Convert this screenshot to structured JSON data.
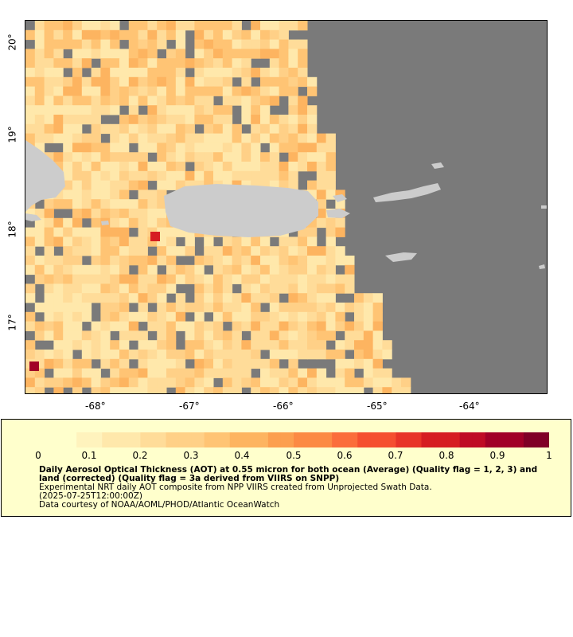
{
  "map": {
    "lon_ticks": [
      "-68°",
      "-67°",
      "-66°",
      "-65°",
      "-64°"
    ],
    "lat_ticks": [
      "20°",
      "19°",
      "18°",
      "17°"
    ],
    "colors": {
      "no_data": "#7a7a7a",
      "land": "#cccccc",
      "colorscale": [
        "#ffffcc",
        "#fff3bd",
        "#ffe8ab",
        "#ffdc99",
        "#ffd087",
        "#ffc474",
        "#fdb460",
        "#fc9f4f",
        "#fc8a44",
        "#fb6d3b",
        "#f54f30",
        "#e83428",
        "#d61d22",
        "#bf0b25",
        "#a10027",
        "#800026"
      ]
    },
    "highlight_cells": [
      "red cell near -67.3, 17.95",
      "dark red cell near -68.75, 16.6"
    ]
  },
  "colorbar": {
    "labels": [
      "0",
      "0.1",
      "0.2",
      "0.3",
      "0.4",
      "0.5",
      "0.6",
      "0.7",
      "0.8",
      "0.9",
      "1"
    ],
    "range": [
      0,
      1
    ]
  },
  "caption": {
    "title": "Daily Aerosol Optical Thickness (AOT) at 0.55 micron for both ocean (Average) (Quality flag = 1, 2, 3) and land (corrected) (Quality flag = 3a derived from VIIRS on SNPP)",
    "line1": "Experimental NRT daily AOT composite from NPP VIIRS created from Unprojected Swath Data.",
    "line2": "(2025-07-25T12:00:00Z)",
    "line3": "Data courtesy of NOAA/AOML/PHOD/Atlantic OceanWatch"
  }
}
